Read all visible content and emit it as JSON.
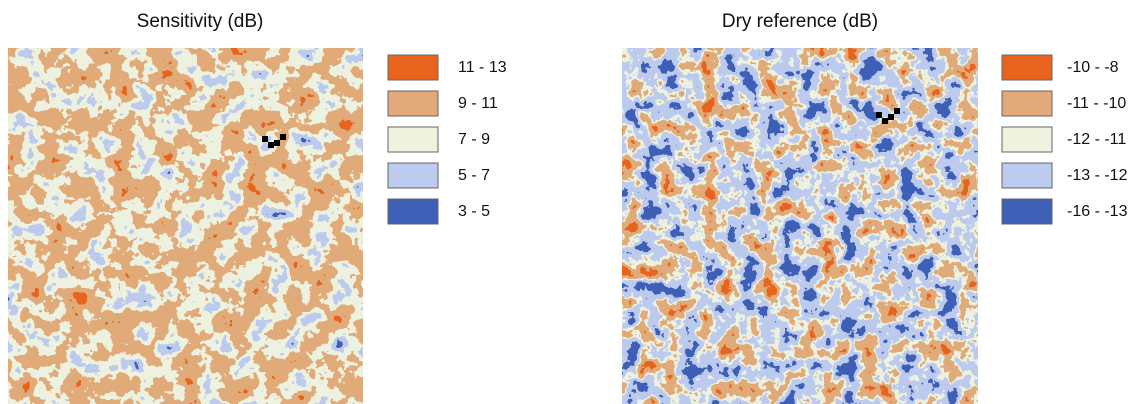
{
  "panels": [
    {
      "title": "Sensitivity (dB)",
      "legend": [
        {
          "label": "11 - 13",
          "color": "#e8641e"
        },
        {
          "label": "9 - 11",
          "color": "#e2aa7a"
        },
        {
          "label": "7 - 9",
          "color": "#eef2df"
        },
        {
          "label": "5 - 7",
          "color": "#bccbee"
        },
        {
          "label": "3 - 5",
          "color": "#3f60b6"
        }
      ]
    },
    {
      "title": "Dry reference (dB)",
      "legend": [
        {
          "label": "-10 - -8",
          "color": "#e8641e"
        },
        {
          "label": "-11 - -10",
          "color": "#e2aa7a"
        },
        {
          "label": "-12 - -11",
          "color": "#eef2df"
        },
        {
          "label": "-13 - -12",
          "color": "#bccbee"
        },
        {
          "label": "-16 - -13",
          "color": "#3f60b6"
        }
      ]
    }
  ]
}
